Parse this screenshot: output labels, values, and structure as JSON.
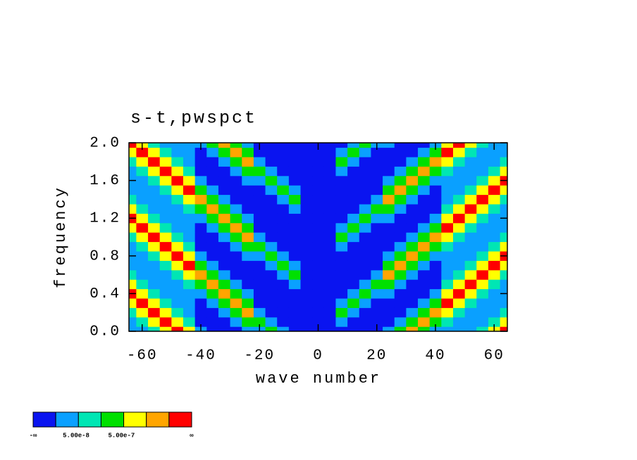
{
  "chart_data": {
    "type": "heatmap",
    "title": "s-t,pwspct",
    "xlabel": "wave number",
    "ylabel": "frequency",
    "xlim": [
      -64.5,
      64.5
    ],
    "ylim": [
      0,
      2
    ],
    "xticks": [
      -60,
      -40,
      -20,
      0,
      20,
      40,
      60
    ],
    "yticks": [
      {
        "value": 0,
        "label": "0.0"
      },
      {
        "value": 0.4,
        "label": "0.4"
      },
      {
        "value": 0.8,
        "label": "0.8"
      },
      {
        "value": 1.2,
        "label": "1.2"
      },
      {
        "value": 1.6,
        "label": "1.6"
      },
      {
        "value": 2,
        "label": "2.0"
      }
    ],
    "x": [
      -64,
      -60,
      -56,
      -52,
      -48,
      -44,
      -40,
      -36,
      -32,
      -28,
      -24,
      -20,
      -16,
      -12,
      -8,
      -4,
      0,
      4,
      8,
      12,
      16,
      20,
      24,
      28,
      32,
      36,
      40,
      44,
      48,
      52,
      56,
      60,
      64
    ],
    "y": [
      0,
      0.1,
      0.2,
      0.3,
      0.4,
      0.5,
      0.6,
      0.7,
      0.8,
      0.9,
      1,
      1.1,
      1.2,
      1.3,
      1.4,
      1.5,
      1.6,
      1.7,
      1.8,
      1.9,
      2
    ],
    "z": [
      [
        1,
        1,
        2,
        4,
        6,
        4,
        1,
        0,
        0,
        0,
        1,
        1,
        3,
        1,
        0,
        0,
        0,
        0,
        0,
        0,
        0,
        0,
        1,
        3,
        5,
        3,
        1,
        1,
        1,
        1,
        2,
        4,
        6
      ],
      [
        1,
        2,
        4,
        6,
        4,
        2,
        0,
        0,
        0,
        1,
        3,
        3,
        1,
        0,
        0,
        0,
        0,
        0,
        1,
        0,
        0,
        0,
        0,
        1,
        3,
        5,
        3,
        2,
        1,
        1,
        1,
        2,
        4
      ],
      [
        2,
        4,
        6,
        4,
        2,
        1,
        0,
        0,
        1,
        3,
        5,
        1,
        0,
        0,
        0,
        0,
        0,
        0,
        3,
        1,
        0,
        0,
        0,
        0,
        1,
        3,
        5,
        4,
        2,
        1,
        1,
        1,
        2
      ],
      [
        4,
        6,
        4,
        2,
        1,
        1,
        0,
        1,
        3,
        5,
        3,
        0,
        0,
        0,
        0,
        0,
        0,
        0,
        1,
        3,
        1,
        0,
        0,
        0,
        0,
        1,
        3,
        6,
        4,
        2,
        1,
        1,
        1
      ],
      [
        6,
        4,
        2,
        1,
        1,
        1,
        1,
        3,
        5,
        3,
        1,
        0,
        0,
        0,
        0,
        0,
        0,
        0,
        0,
        1,
        3,
        1,
        1,
        0,
        0,
        0,
        1,
        4,
        6,
        4,
        2,
        1,
        1
      ],
      [
        4,
        2,
        1,
        1,
        1,
        2,
        3,
        5,
        3,
        1,
        0,
        0,
        0,
        0,
        1,
        0,
        0,
        0,
        0,
        0,
        1,
        3,
        3,
        1,
        0,
        0,
        0,
        2,
        4,
        6,
        4,
        2,
        1
      ],
      [
        2,
        1,
        1,
        1,
        2,
        4,
        5,
        3,
        1,
        0,
        0,
        0,
        0,
        1,
        3,
        0,
        0,
        0,
        0,
        0,
        0,
        1,
        5,
        3,
        1,
        0,
        0,
        1,
        2,
        4,
        6,
        4,
        2
      ],
      [
        1,
        1,
        1,
        2,
        4,
        6,
        3,
        1,
        0,
        0,
        0,
        0,
        1,
        3,
        1,
        0,
        0,
        0,
        0,
        0,
        0,
        0,
        3,
        5,
        3,
        1,
        0,
        1,
        1,
        2,
        4,
        6,
        4
      ],
      [
        1,
        1,
        2,
        4,
        6,
        4,
        1,
        0,
        0,
        0,
        1,
        1,
        3,
        1,
        0,
        0,
        0,
        0,
        0,
        0,
        0,
        0,
        1,
        3,
        5,
        3,
        1,
        1,
        1,
        1,
        2,
        4,
        6
      ],
      [
        1,
        2,
        4,
        6,
        4,
        2,
        0,
        0,
        0,
        1,
        3,
        3,
        1,
        0,
        0,
        0,
        0,
        0,
        1,
        0,
        0,
        0,
        0,
        1,
        3,
        5,
        3,
        2,
        1,
        1,
        1,
        2,
        4
      ],
      [
        2,
        4,
        6,
        4,
        2,
        1,
        0,
        0,
        1,
        3,
        5,
        1,
        0,
        0,
        0,
        0,
        0,
        0,
        3,
        1,
        0,
        0,
        0,
        0,
        1,
        3,
        5,
        4,
        2,
        1,
        1,
        1,
        2
      ],
      [
        4,
        6,
        4,
        2,
        1,
        1,
        0,
        1,
        3,
        5,
        3,
        0,
        0,
        0,
        0,
        0,
        0,
        0,
        1,
        3,
        1,
        0,
        0,
        0,
        0,
        1,
        3,
        6,
        4,
        2,
        1,
        1,
        1
      ],
      [
        6,
        4,
        2,
        1,
        1,
        1,
        1,
        3,
        5,
        3,
        1,
        0,
        0,
        0,
        0,
        0,
        0,
        0,
        0,
        1,
        3,
        1,
        1,
        0,
        0,
        0,
        1,
        4,
        6,
        4,
        2,
        1,
        1
      ],
      [
        4,
        2,
        1,
        1,
        1,
        2,
        3,
        5,
        3,
        1,
        0,
        0,
        0,
        0,
        1,
        0,
        0,
        0,
        0,
        0,
        1,
        3,
        3,
        1,
        0,
        0,
        0,
        2,
        4,
        6,
        4,
        2,
        1
      ],
      [
        2,
        1,
        1,
        1,
        2,
        4,
        5,
        3,
        1,
        0,
        0,
        0,
        0,
        1,
        3,
        0,
        0,
        0,
        0,
        0,
        0,
        1,
        5,
        3,
        1,
        0,
        0,
        1,
        2,
        4,
        6,
        4,
        2
      ],
      [
        1,
        1,
        1,
        2,
        4,
        6,
        3,
        1,
        0,
        0,
        0,
        0,
        1,
        3,
        1,
        0,
        0,
        0,
        0,
        0,
        0,
        0,
        3,
        5,
        3,
        1,
        0,
        1,
        1,
        2,
        4,
        6,
        4
      ],
      [
        1,
        1,
        2,
        4,
        6,
        4,
        1,
        0,
        0,
        0,
        1,
        1,
        3,
        1,
        0,
        0,
        0,
        0,
        0,
        0,
        0,
        0,
        1,
        3,
        5,
        3,
        1,
        1,
        1,
        1,
        2,
        4,
        6
      ],
      [
        1,
        2,
        4,
        6,
        4,
        2,
        0,
        0,
        0,
        1,
        3,
        3,
        1,
        0,
        0,
        0,
        0,
        0,
        1,
        0,
        0,
        0,
        0,
        1,
        3,
        5,
        3,
        2,
        1,
        1,
        1,
        2,
        4
      ],
      [
        2,
        4,
        6,
        4,
        2,
        1,
        0,
        0,
        1,
        3,
        5,
        1,
        0,
        0,
        0,
        0,
        0,
        0,
        3,
        1,
        0,
        0,
        0,
        0,
        1,
        3,
        5,
        4,
        2,
        1,
        1,
        1,
        2
      ],
      [
        4,
        6,
        4,
        2,
        1,
        1,
        0,
        1,
        3,
        5,
        3,
        0,
        0,
        0,
        0,
        0,
        0,
        0,
        1,
        3,
        1,
        0,
        0,
        0,
        0,
        1,
        3,
        6,
        4,
        2,
        1,
        1,
        1
      ],
      [
        6,
        4,
        2,
        1,
        1,
        1,
        1,
        3,
        5,
        3,
        1,
        0,
        0,
        0,
        0,
        0,
        0,
        0,
        0,
        1,
        3,
        1,
        1,
        0,
        0,
        0,
        1,
        4,
        6,
        4,
        2,
        1,
        1
      ]
    ],
    "colors": [
      "#0a14f0",
      "#0aa0ff",
      "#00e6b4",
      "#00e000",
      "#ffff00",
      "#ffa500",
      "#ff0000"
    ],
    "colorbar_labels": [
      "-∞",
      "5.00e-8",
      "5.00e-7",
      "∞"
    ]
  }
}
